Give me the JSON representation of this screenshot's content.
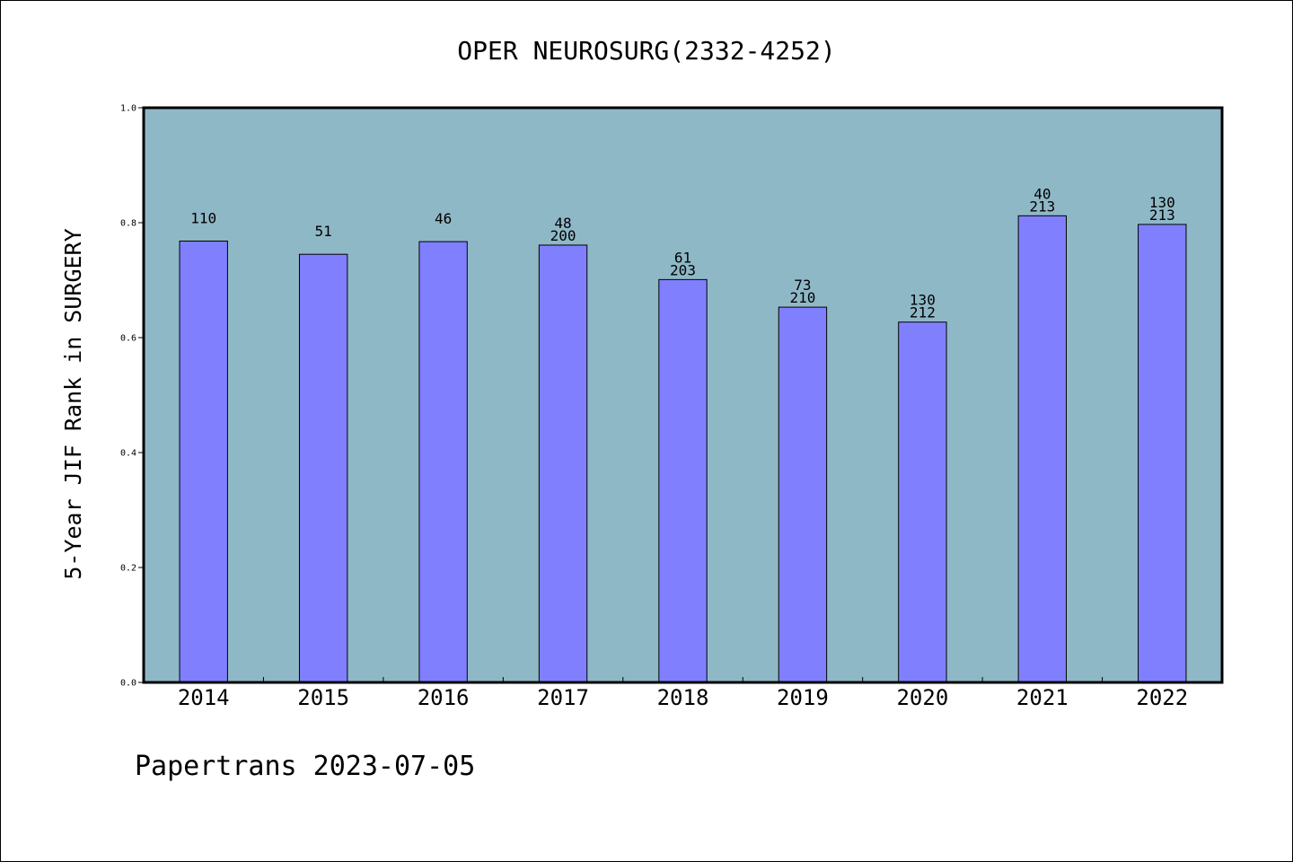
{
  "chart_data": {
    "type": "bar",
    "title": "OPER NEUROSURG(2332-4252)",
    "ylabel": "5-Year JIF Rank in SURGERY",
    "xlabel": "",
    "ylim": [
      0,
      1.0
    ],
    "yticks": [
      "0.0",
      "0.2",
      "0.4",
      "0.6",
      "0.8",
      "1.0"
    ],
    "categories": [
      "2014",
      "2015",
      "2016",
      "2017",
      "2018",
      "2019",
      "2020",
      "2021",
      "2022"
    ],
    "values": [
      0.768,
      0.745,
      0.767,
      0.761,
      0.701,
      0.653,
      0.627,
      0.812,
      0.797
    ],
    "labels": [
      [
        "110"
      ],
      [
        "51"
      ],
      [
        "46"
      ],
      [
        "48",
        "200"
      ],
      [
        "61",
        "203"
      ],
      [
        "73",
        "210"
      ],
      [
        "130",
        "212"
      ],
      [
        "40",
        "213"
      ],
      [
        "130",
        "213"
      ]
    ],
    "colors": {
      "plot_background": "#8fb8c7",
      "bar_fill": "#8080ff",
      "bar_stroke": "#000000"
    },
    "grid": false,
    "legend": "none"
  },
  "footer": {
    "text": "Papertrans 2023-07-05"
  }
}
